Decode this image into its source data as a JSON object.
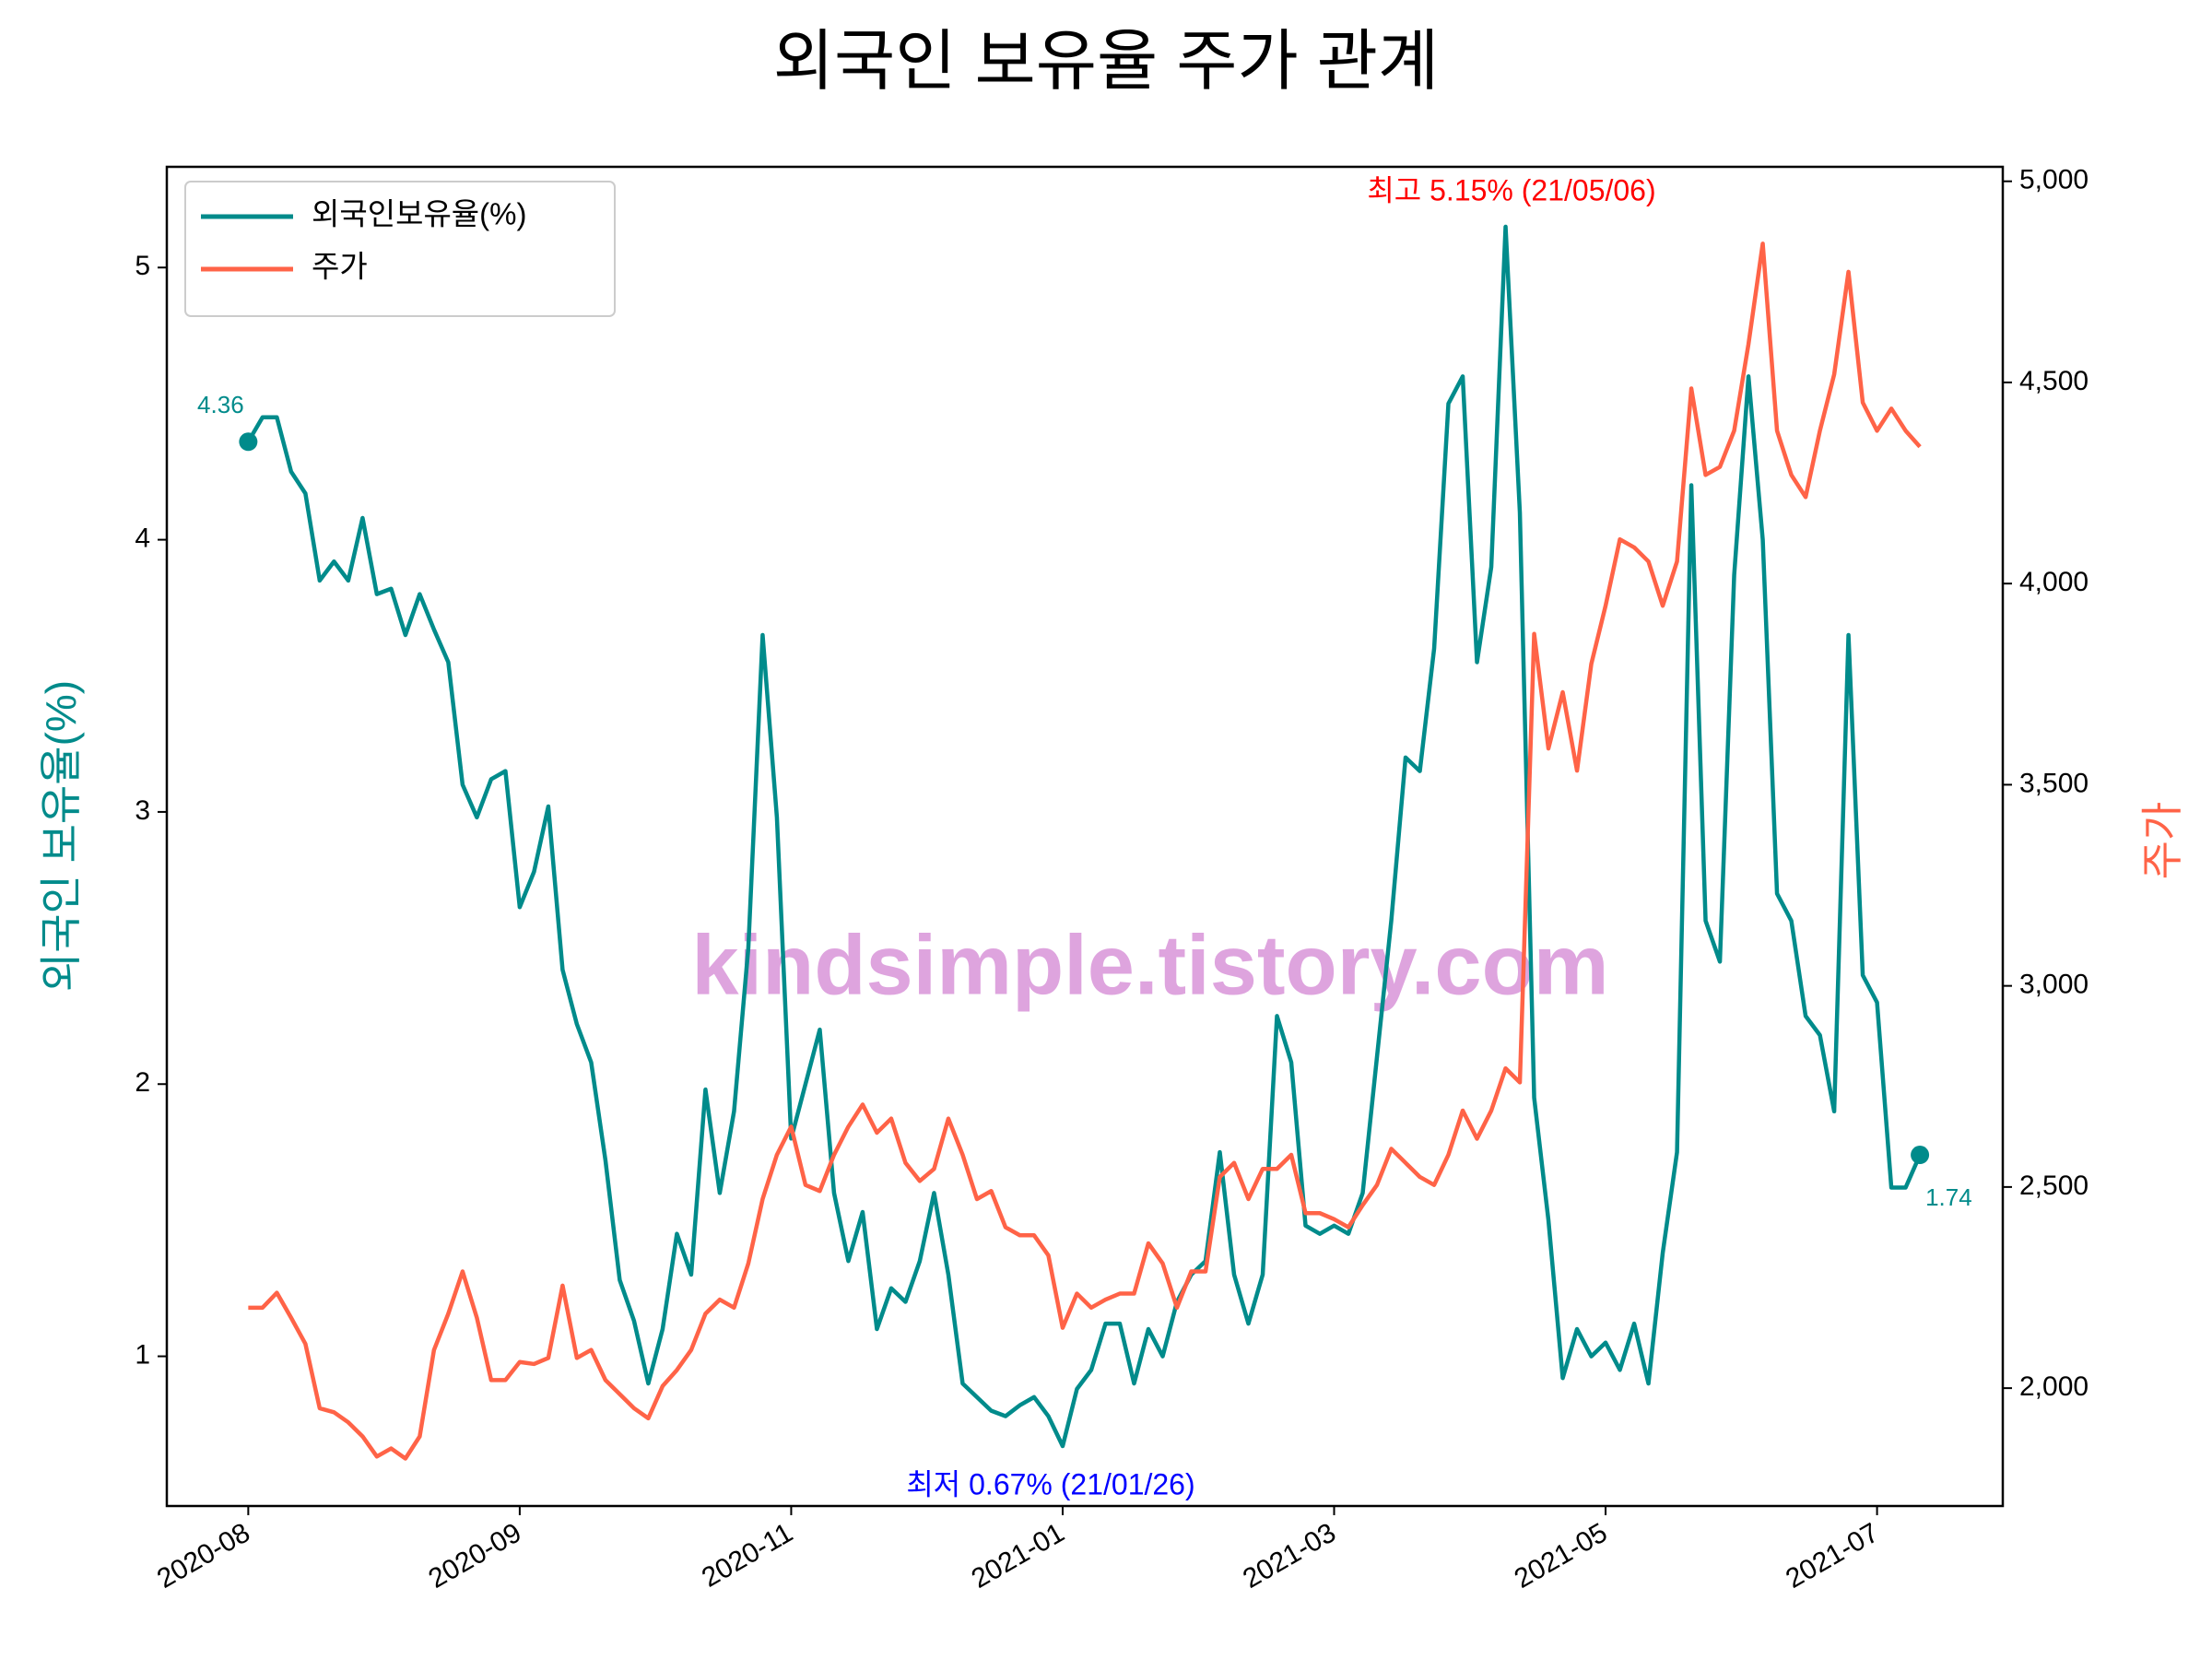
{
  "chart_data": {
    "type": "line",
    "title": "외국인 보유율 주가 관계",
    "ylabel": "외국인 보유율(%)",
    "y2label": "주가",
    "legend": "upper left",
    "grid": false,
    "watermark": "kindsimple.tistory.com",
    "annotations": [
      {
        "text": "4.36",
        "color": "#008b8b"
      },
      {
        "text": "1.74",
        "color": "#008b8b"
      },
      {
        "text": "최고 5.15% (21/05/06)",
        "color": "#ff0000"
      },
      {
        "text": "최저 0.67% (21/01/26)",
        "color": "#0000ff"
      }
    ],
    "xlim": [
      -11.4,
      245.6
    ],
    "xticks": [
      {
        "value": 0,
        "label": "2020-08"
      },
      {
        "value": 38,
        "label": "2020-09"
      },
      {
        "value": 76,
        "label": "2020-11"
      },
      {
        "value": 114,
        "label": "2021-01"
      },
      {
        "value": 152,
        "label": "2021-03"
      },
      {
        "value": 190,
        "label": "2021-05"
      },
      {
        "value": 228,
        "label": "2021-07"
      }
    ],
    "ylim": [
      0.45,
      5.37
    ],
    "yticks": [
      1,
      2,
      3,
      4,
      5
    ],
    "y2lim": [
      1707,
      5036
    ],
    "y2ticks": [
      {
        "value": 2000,
        "label": "2,000"
      },
      {
        "value": 2500,
        "label": "2,500"
      },
      {
        "value": 3000,
        "label": "3,000"
      },
      {
        "value": 3500,
        "label": "3,500"
      },
      {
        "value": 4000,
        "label": "4,000"
      },
      {
        "value": 4500,
        "label": "4,500"
      },
      {
        "value": 5000,
        "label": "5,000"
      }
    ],
    "x": [
      0,
      2,
      4,
      6,
      8,
      10,
      12,
      14,
      16,
      18,
      20,
      22,
      24,
      26,
      28,
      30,
      32,
      34,
      36,
      38,
      40,
      42,
      44,
      46,
      48,
      50,
      52,
      54,
      56,
      58,
      60,
      62,
      64,
      66,
      68,
      70,
      72,
      74,
      76,
      78,
      80,
      82,
      84,
      86,
      88,
      90,
      92,
      94,
      96,
      98,
      100,
      102,
      104,
      106,
      108,
      110,
      112,
      114,
      116,
      118,
      120,
      122,
      124,
      126,
      128,
      130,
      132,
      134,
      136,
      138,
      140,
      142,
      144,
      146,
      148,
      150,
      152,
      154,
      156,
      158,
      160,
      162,
      164,
      166,
      168,
      170,
      172,
      174,
      176,
      178,
      180,
      182,
      184,
      186,
      188,
      190,
      192,
      194,
      196,
      198,
      200,
      202,
      204,
      206,
      208,
      210,
      212,
      214,
      216,
      218,
      220,
      222,
      224,
      226,
      228,
      230,
      232,
      234
    ],
    "series": [
      {
        "name": "외국인보유율(%)",
        "color": "#008b8b",
        "values": [
          4.36,
          4.45,
          4.45,
          4.25,
          4.17,
          3.85,
          3.92,
          3.85,
          4.08,
          3.8,
          3.82,
          3.65,
          3.8,
          3.67,
          3.55,
          3.1,
          2.98,
          3.12,
          3.15,
          2.65,
          2.78,
          3.02,
          2.42,
          2.22,
          2.08,
          1.72,
          1.28,
          1.13,
          0.9,
          1.1,
          1.45,
          1.3,
          1.98,
          1.6,
          1.9,
          2.5,
          3.65,
          2.98,
          1.8,
          2.0,
          2.2,
          1.6,
          1.35,
          1.53,
          1.1,
          1.25,
          1.2,
          1.35,
          1.6,
          1.3,
          0.9,
          0.85,
          0.8,
          0.78,
          0.82,
          0.85,
          0.78,
          0.67,
          0.88,
          0.95,
          1.12,
          1.12,
          0.9,
          1.1,
          1.0,
          1.2,
          1.3,
          1.35,
          1.75,
          1.3,
          1.12,
          1.3,
          2.25,
          2.08,
          1.48,
          1.45,
          1.48,
          1.45,
          1.6,
          2.1,
          2.6,
          3.2,
          3.15,
          3.6,
          4.5,
          4.6,
          3.55,
          3.9,
          5.15,
          4.1,
          1.95,
          1.5,
          0.92,
          1.1,
          1.0,
          1.05,
          0.95,
          1.12,
          0.9,
          1.38,
          1.75,
          4.2,
          2.6,
          2.45,
          3.87,
          4.6,
          4.0,
          2.7,
          2.6,
          2.25,
          2.18,
          1.9,
          3.65,
          2.4,
          2.3,
          1.62,
          1.62,
          1.74
        ]
      },
      {
        "name": "주가",
        "color": "#ff6347",
        "axis": "y2",
        "values": [
          2200,
          2200,
          2237,
          2175,
          2110,
          1950,
          1940,
          1915,
          1880,
          1830,
          1850,
          1825,
          1880,
          2095,
          2185,
          2290,
          2175,
          2020,
          2020,
          2065,
          2060,
          2075,
          2255,
          2075,
          2095,
          2020,
          1985,
          1950,
          1925,
          2005,
          2045,
          2095,
          2185,
          2220,
          2200,
          2310,
          2470,
          2580,
          2650,
          2505,
          2490,
          2580,
          2650,
          2705,
          2635,
          2670,
          2560,
          2515,
          2545,
          2670,
          2580,
          2470,
          2490,
          2400,
          2380,
          2380,
          2330,
          2150,
          2235,
          2200,
          2220,
          2235,
          2235,
          2360,
          2310,
          2200,
          2290,
          2290,
          2525,
          2560,
          2470,
          2545,
          2545,
          2580,
          2435,
          2435,
          2420,
          2400,
          2455,
          2505,
          2595,
          2560,
          2525,
          2505,
          2580,
          2690,
          2620,
          2690,
          2795,
          2760,
          3875,
          3590,
          3730,
          3535,
          3800,
          3945,
          4110,
          4090,
          4055,
          3945,
          4055,
          4485,
          4270,
          4290,
          4380,
          4595,
          4845,
          4380,
          4270,
          4215,
          4380,
          4520,
          4775,
          4450,
          4380,
          4435,
          4380,
          4340
        ]
      }
    ]
  }
}
